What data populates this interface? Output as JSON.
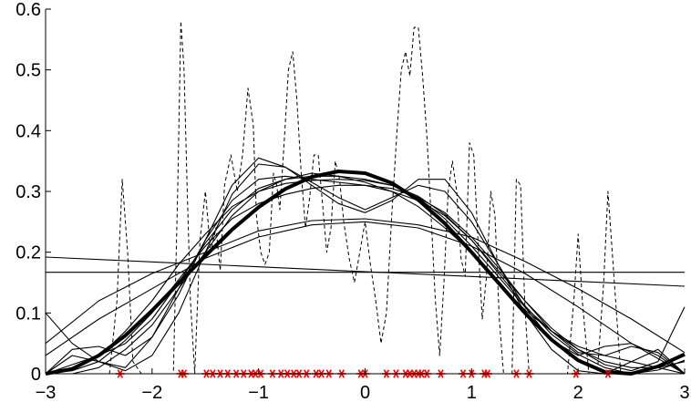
{
  "chart_data": {
    "type": "line",
    "title": "",
    "xlabel": "",
    "ylabel": "",
    "xlim": [
      -3,
      3
    ],
    "ylim": [
      0,
      0.6
    ],
    "grid": false,
    "x_ticks": [
      -3,
      -2,
      -1,
      0,
      1,
      2,
      3
    ],
    "x_tick_labels": [
      "−3",
      "−2",
      "−1",
      "0",
      "1",
      "2",
      "3"
    ],
    "y_ticks": [
      0,
      0.1,
      0.2,
      0.3,
      0.4,
      0.5,
      0.6
    ],
    "y_tick_labels": [
      "0",
      "0.1",
      "0.2",
      "0.3",
      "0.4",
      "0.5",
      "0.6"
    ],
    "colors": {
      "axis": "#000000",
      "curves": "#000000",
      "samples": "#ff0000"
    },
    "samples": {
      "marker": "asterisk",
      "y": 0,
      "x": [
        -2.3,
        -1.73,
        -1.7,
        -1.49,
        -1.43,
        -1.36,
        -1.29,
        -1.21,
        -1.14,
        -1.07,
        -1.03,
        -0.98,
        -0.87,
        -0.79,
        -0.73,
        -0.67,
        -0.62,
        -0.55,
        -0.46,
        -0.41,
        -0.34,
        -0.22,
        -0.04,
        0.0,
        0.2,
        0.29,
        0.38,
        0.42,
        0.46,
        0.5,
        0.53,
        0.58,
        0.71,
        0.92,
        1.0,
        1.12,
        1.15,
        1.42,
        1.54,
        1.98,
        2.28
      ]
    },
    "series": [
      {
        "style": "thick-solid",
        "x": [
          -3,
          -2.75,
          -2.5,
          -2.25,
          -2,
          -1.75,
          -1.5,
          -1.25,
          -1,
          -0.75,
          -0.5,
          -0.25,
          0,
          0.25,
          0.5,
          0.75,
          1,
          1.25,
          1.5,
          1.75,
          2,
          2.25,
          2.5,
          2.75,
          3
        ],
        "y": [
          0.0,
          0.008,
          0.03,
          0.063,
          0.104,
          0.149,
          0.194,
          0.237,
          0.274,
          0.304,
          0.324,
          0.333,
          0.33,
          0.314,
          0.286,
          0.247,
          0.2,
          0.15,
          0.1,
          0.056,
          0.022,
          0.003,
          0.0,
          0.012,
          0.032
        ]
      },
      {
        "style": "dashed",
        "x": [
          -3,
          -2.9,
          -2.8,
          -2.7,
          -2.6,
          -2.5,
          -2.4,
          -2.33,
          -2.28,
          -2.23,
          -2.18,
          -2.1,
          -2.0,
          -1.9,
          -1.8,
          -1.76,
          -1.73,
          -1.7,
          -1.67,
          -1.64,
          -1.6,
          -1.55,
          -1.5,
          -1.45,
          -1.4,
          -1.36,
          -1.32,
          -1.26,
          -1.2,
          -1.15,
          -1.1,
          -1.05,
          -1.02,
          -0.98,
          -0.94,
          -0.9,
          -0.86,
          -0.83,
          -0.8,
          -0.76,
          -0.72,
          -0.68,
          -0.64,
          -0.6,
          -0.56,
          -0.52,
          -0.48,
          -0.44,
          -0.4,
          -0.36,
          -0.32,
          -0.28,
          -0.24,
          -0.2,
          -0.15,
          -0.1,
          -0.05,
          0.0,
          0.05,
          0.1,
          0.15,
          0.2,
          0.25,
          0.3,
          0.34,
          0.38,
          0.42,
          0.46,
          0.5,
          0.54,
          0.58,
          0.62,
          0.66,
          0.7,
          0.74,
          0.78,
          0.82,
          0.86,
          0.9,
          0.94,
          0.98,
          1.02,
          1.06,
          1.1,
          1.14,
          1.18,
          1.22,
          1.26,
          1.3,
          1.34,
          1.38,
          1.42,
          1.46,
          1.5,
          1.54,
          1.58,
          1.62,
          1.66,
          1.7,
          1.8,
          1.9,
          1.96,
          2.0,
          2.04,
          2.1,
          2.18,
          2.24,
          2.28,
          2.32,
          2.4,
          2.5,
          2.6,
          2.7,
          2.8,
          2.9,
          3
        ],
        "y": [
          0.0,
          0.0,
          0.0,
          0.0,
          0.0,
          0.0,
          0.0,
          0.12,
          0.32,
          0.2,
          0.02,
          0.0,
          0.0,
          0.0,
          0.0,
          0.3,
          0.58,
          0.5,
          0.3,
          0.12,
          0.0,
          0.22,
          0.3,
          0.2,
          0.24,
          0.17,
          0.31,
          0.36,
          0.3,
          0.36,
          0.47,
          0.41,
          0.26,
          0.2,
          0.18,
          0.2,
          0.33,
          0.31,
          0.27,
          0.38,
          0.5,
          0.53,
          0.45,
          0.33,
          0.24,
          0.29,
          0.36,
          0.36,
          0.28,
          0.2,
          0.24,
          0.35,
          0.32,
          0.25,
          0.19,
          0.15,
          0.2,
          0.25,
          0.18,
          0.12,
          0.05,
          0.1,
          0.26,
          0.4,
          0.5,
          0.53,
          0.49,
          0.57,
          0.57,
          0.49,
          0.39,
          0.26,
          0.12,
          0.03,
          0.15,
          0.3,
          0.35,
          0.3,
          0.19,
          0.16,
          0.38,
          0.36,
          0.22,
          0.09,
          0.16,
          0.3,
          0.26,
          0.09,
          0.0,
          0.0,
          0.0,
          0.32,
          0.31,
          0.11,
          0.0,
          0.0,
          0.0,
          0.0,
          0.0,
          0.0,
          0.0,
          0.12,
          0.23,
          0.12,
          0.0,
          0.0,
          0.15,
          0.3,
          0.2,
          0.0,
          0.0,
          0.0,
          0.0,
          0.0,
          0.0,
          0.0
        ]
      },
      {
        "style": "thin-solid",
        "x": [
          -3,
          -2,
          -1,
          0,
          1,
          2,
          3
        ],
        "y": [
          0.192,
          0.184,
          0.176,
          0.168,
          0.16,
          0.152,
          0.144
        ]
      },
      {
        "style": "thin-solid",
        "x": [
          -3,
          3
        ],
        "y": [
          0.167,
          0.167
        ]
      },
      {
        "style": "thin-solid",
        "x": [
          -3,
          -2.5,
          -2,
          -1.5,
          -1,
          -0.5,
          0,
          0.5,
          1,
          1.5,
          2,
          2.5,
          3
        ],
        "y": [
          0.03,
          0.09,
          0.14,
          0.19,
          0.225,
          0.245,
          0.25,
          0.24,
          0.21,
          0.165,
          0.11,
          0.05,
          0.0
        ]
      },
      {
        "style": "thin-solid",
        "x": [
          -3,
          -2.5,
          -2,
          -1.5,
          -1,
          -0.5,
          0,
          0.5,
          1,
          1.5,
          2,
          2.5,
          3
        ],
        "y": [
          0.05,
          0.12,
          0.165,
          0.2,
          0.235,
          0.252,
          0.255,
          0.245,
          0.225,
          0.185,
          0.14,
          0.09,
          0.035
        ]
      },
      {
        "style": "thin-solid",
        "x": [
          -3,
          -2.75,
          -2.5,
          -2.25,
          -2,
          -1.75,
          -1.5,
          -1.25,
          -1,
          -0.75,
          -0.5,
          -0.25,
          0,
          0.25,
          0.5,
          0.75,
          1,
          1.25,
          1.5,
          1.75,
          2,
          2.25,
          2.5,
          2.75,
          3
        ],
        "y": [
          0.0,
          0.01,
          0.028,
          0.07,
          0.12,
          0.18,
          0.23,
          0.275,
          0.3,
          0.313,
          0.318,
          0.32,
          0.318,
          0.31,
          0.292,
          0.262,
          0.22,
          0.166,
          0.112,
          0.065,
          0.032,
          0.01,
          0.0,
          0.006,
          0.022
        ]
      },
      {
        "style": "thin-solid",
        "x": [
          -3,
          -2.75,
          -2.5,
          -2.25,
          -2,
          -1.75,
          -1.5,
          -1.25,
          -1,
          -0.75,
          -0.5,
          -0.25,
          0,
          0.25,
          0.5,
          0.75,
          1,
          1.25,
          1.5,
          1.75,
          2,
          2.25,
          2.5,
          2.75,
          3
        ],
        "y": [
          0.0,
          0.04,
          0.045,
          0.03,
          0.06,
          0.13,
          0.22,
          0.31,
          0.355,
          0.34,
          0.315,
          0.29,
          0.27,
          0.29,
          0.31,
          0.3,
          0.25,
          0.18,
          0.11,
          0.055,
          0.03,
          0.045,
          0.05,
          0.03,
          0.0
        ]
      },
      {
        "style": "thin-solid",
        "x": [
          -3,
          -2.75,
          -2.5,
          -2.25,
          -2,
          -1.75,
          -1.5,
          -1.25,
          -1,
          -0.75,
          -0.5,
          -0.25,
          0,
          0.25,
          0.5,
          0.75,
          1,
          1.25,
          1.5,
          1.75,
          2,
          2.25,
          2.5,
          2.75,
          3
        ],
        "y": [
          0.1,
          0.05,
          0.02,
          0.005,
          0.03,
          0.1,
          0.2,
          0.295,
          0.345,
          0.34,
          0.31,
          0.28,
          0.265,
          0.285,
          0.32,
          0.32,
          0.265,
          0.18,
          0.1,
          0.04,
          0.005,
          0.0,
          0.02,
          0.04,
          0.0
        ]
      },
      {
        "style": "thin-solid",
        "x": [
          -3,
          -2.75,
          -2.5,
          -2.25,
          -2,
          -1.75,
          -1.5,
          -1.25,
          -1,
          -0.75,
          -0.5,
          -0.25,
          0,
          0.25,
          0.5,
          0.75,
          1,
          1.25,
          1.5,
          1.75,
          2,
          2.25,
          2.5,
          2.75,
          3
        ],
        "y": [
          0.0,
          0.03,
          0.02,
          0.01,
          0.06,
          0.14,
          0.22,
          0.285,
          0.32,
          0.325,
          0.32,
          0.315,
          0.31,
          0.3,
          0.285,
          0.26,
          0.22,
          0.17,
          0.12,
          0.07,
          0.035,
          0.03,
          0.045,
          0.035,
          0.0
        ]
      },
      {
        "style": "thin-solid",
        "x": [
          -3,
          -2.75,
          -2.5,
          -2.25,
          -2,
          -1.75,
          -1.5,
          -1.25,
          -1,
          -0.75,
          -0.5,
          -0.25,
          0,
          0.25,
          0.5,
          0.75,
          1,
          1.25,
          1.5,
          1.75,
          2,
          2.25,
          2.5,
          2.75,
          3
        ],
        "y": [
          0.0,
          0.015,
          0.03,
          0.05,
          0.09,
          0.15,
          0.215,
          0.27,
          0.305,
          0.32,
          0.325,
          0.325,
          0.32,
          0.31,
          0.29,
          0.255,
          0.21,
          0.16,
          0.11,
          0.07,
          0.04,
          0.02,
          0.01,
          0.01,
          0.02
        ]
      },
      {
        "style": "thin-solid",
        "x": [
          -3,
          -2.75,
          -2.5,
          -2.25,
          -2,
          -1.75,
          -1.5,
          -1.25,
          -1,
          -0.75,
          -0.5,
          -0.25,
          0,
          0.25,
          0.5,
          0.75,
          1,
          1.25,
          1.5,
          1.75,
          2,
          2.25,
          2.5,
          2.75,
          3
        ],
        "y": [
          0.0,
          0.0,
          0.01,
          0.04,
          0.08,
          0.14,
          0.2,
          0.26,
          0.3,
          0.32,
          0.33,
          0.325,
          0.315,
          0.3,
          0.275,
          0.24,
          0.2,
          0.15,
          0.105,
          0.07,
          0.045,
          0.03,
          0.02,
          0.01,
          0.0
        ]
      },
      {
        "style": "thin-solid",
        "x": [
          -3,
          -2.75,
          -2.5,
          -2.25,
          -2,
          -1.75,
          -1.5,
          -1.25,
          -1,
          -0.75,
          -0.5,
          -0.25,
          0,
          0.25,
          0.5,
          0.75,
          1,
          1.25,
          1.5,
          1.75,
          2,
          2.25,
          2.5,
          2.75,
          3
        ],
        "y": [
          0.0,
          0.005,
          0.02,
          0.055,
          0.1,
          0.155,
          0.21,
          0.255,
          0.28,
          0.295,
          0.305,
          0.31,
          0.31,
          0.305,
          0.29,
          0.265,
          0.225,
          0.175,
          0.12,
          0.075,
          0.04,
          0.015,
          0.005,
          0.02,
          0.11
        ]
      }
    ]
  }
}
